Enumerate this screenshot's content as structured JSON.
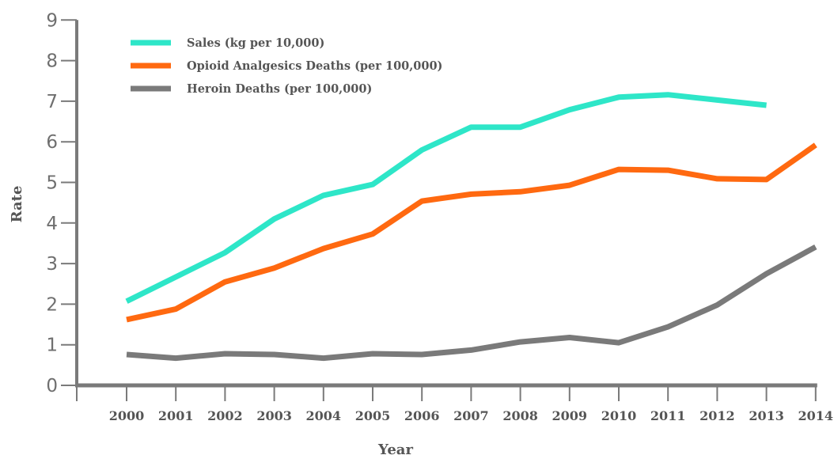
{
  "chart_data": {
    "type": "line",
    "title": "",
    "xlabel": "Year",
    "ylabel": "Rate",
    "ylim": [
      0,
      9
    ],
    "yticks": [
      "0",
      "1",
      "2",
      "3",
      "4",
      "5",
      "6",
      "7",
      "8",
      "9"
    ],
    "categories": [
      "2000",
      "2001",
      "2002",
      "2003",
      "2004",
      "2005",
      "2006",
      "2007",
      "2008",
      "2009",
      "2010",
      "2011",
      "2012",
      "2013",
      "2014"
    ],
    "grid": false,
    "legend_position": "top-left",
    "series": [
      {
        "name": "Sales (kg per 10,000)",
        "color": "#2ee6c8",
        "values": [
          2.07,
          2.67,
          3.27,
          4.1,
          4.68,
          4.95,
          5.8,
          6.36,
          6.36,
          6.79,
          7.1,
          7.16,
          7.03,
          6.9,
          null
        ]
      },
      {
        "name": "Opioid Analgesics Deaths (per 100,000)",
        "color": "#ff6910",
        "values": [
          1.62,
          1.88,
          2.55,
          2.89,
          3.37,
          3.73,
          4.54,
          4.71,
          4.77,
          4.93,
          5.32,
          5.3,
          5.09,
          5.07,
          5.92
        ]
      },
      {
        "name": "Heroin Deaths (per 100,000)",
        "color": "#7a7a7a",
        "values": [
          0.76,
          0.67,
          0.78,
          0.76,
          0.67,
          0.78,
          0.76,
          0.87,
          1.07,
          1.18,
          1.05,
          1.44,
          1.98,
          2.75,
          3.41
        ]
      }
    ]
  }
}
